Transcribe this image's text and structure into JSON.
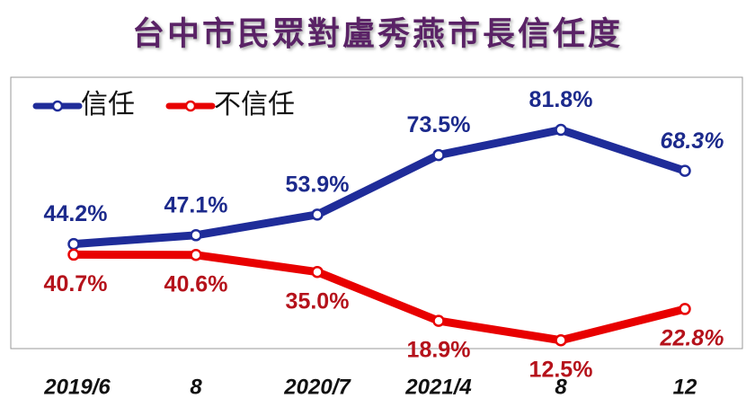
{
  "chart_data": {
    "type": "line",
    "title": "台中市民眾對盧秀燕市長信任度",
    "categories": [
      "2019/6",
      "8",
      "2020/7",
      "2021/4",
      "8",
      "12"
    ],
    "series": [
      {
        "name": "信任",
        "color": "#1f2c99",
        "label_color": "#1c2a8c",
        "values": [
          44.2,
          47.1,
          53.9,
          73.5,
          81.8,
          68.3
        ],
        "value_labels": [
          "44.2%",
          "47.1%",
          "53.9%",
          "73.5%",
          "81.8%",
          "68.3%"
        ]
      },
      {
        "name": "不信任",
        "color": "#e80000",
        "label_color": "#b5121b",
        "values": [
          40.7,
          40.6,
          35.0,
          18.9,
          12.5,
          22.8
        ],
        "value_labels": [
          "40.7%",
          "40.6%",
          "35.0%",
          "18.9%",
          "12.5%",
          "22.8%"
        ]
      }
    ]
  }
}
